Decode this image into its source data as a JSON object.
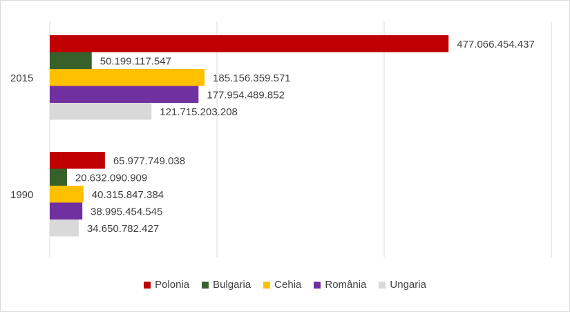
{
  "chart_data": {
    "type": "bar",
    "orientation": "horizontal",
    "categories": [
      "2015",
      "1990"
    ],
    "series": [
      {
        "name": "Polonia",
        "color": "#c00000",
        "values": [
          477066454437,
          65977749038
        ],
        "labels": [
          "477.066.454.437",
          "65.977.749.038"
        ]
      },
      {
        "name": "Bulgaria",
        "color": "#38602b",
        "values": [
          50199117547,
          20632090909
        ],
        "labels": [
          "50.199.117.547",
          "20.632.090.909"
        ]
      },
      {
        "name": "Cehia",
        "color": "#ffc000",
        "values": [
          185156359571,
          40315847384
        ],
        "labels": [
          "185.156.359.571",
          "40.315.847.384"
        ]
      },
      {
        "name": "România",
        "color": "#7030a0",
        "values": [
          177954489852,
          38995454545
        ],
        "labels": [
          "177.954.489.852",
          "38.995.454.545"
        ]
      },
      {
        "name": "Ungaria",
        "color": "#d9d9d9",
        "values": [
          121715203208,
          34650782427
        ],
        "labels": [
          "121.715.203.208",
          "34.650.782.427"
        ]
      }
    ],
    "xlim": [
      0,
      600000000000
    ],
    "grid": true,
    "legend_position": "bottom",
    "title": "",
    "xlabel": "",
    "ylabel": ""
  }
}
